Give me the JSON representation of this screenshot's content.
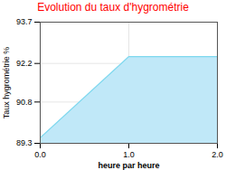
{
  "chart_data": {
    "type": "area",
    "title": "Evolution du taux d'hygrométrie",
    "xlabel": "heure par heure",
    "ylabel": "Taux hygrométrie %",
    "x": [
      0,
      1,
      2
    ],
    "values": [
      89.5,
      92.45,
      92.45
    ],
    "color": "#7dd8ee",
    "xlim": [
      0,
      2
    ],
    "xticks": [
      0,
      1,
      2
    ],
    "ylim": [
      89.3,
      93.7
    ],
    "yticks": [
      89.3,
      90.8,
      92.2,
      93.7
    ],
    "grid": true
  }
}
